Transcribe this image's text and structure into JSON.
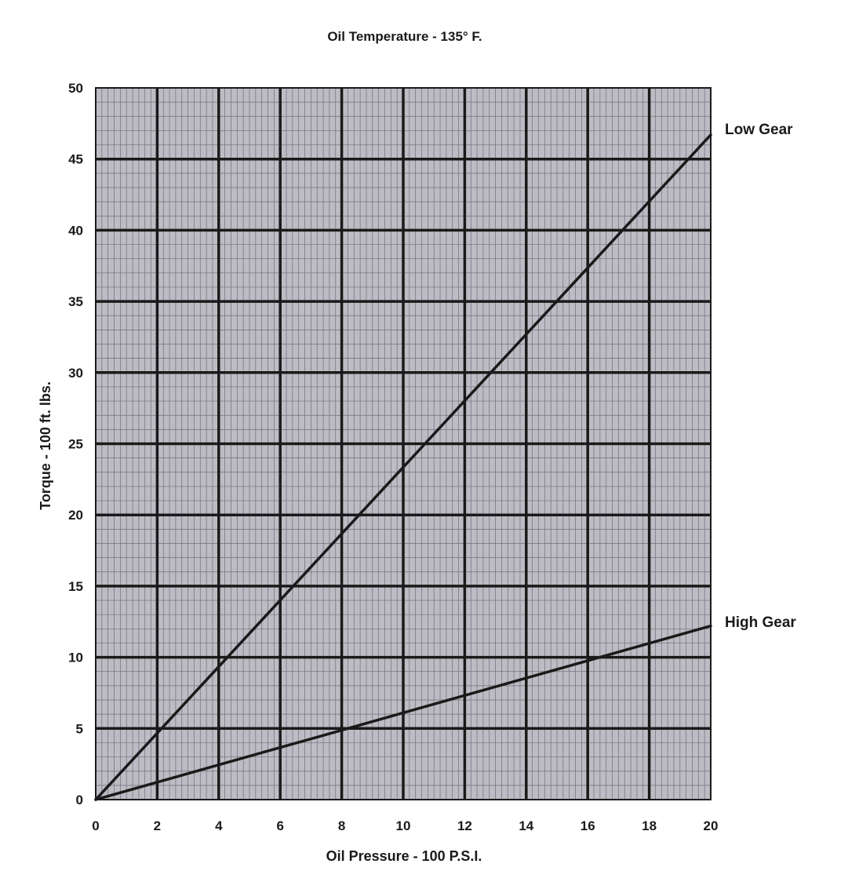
{
  "chart_data": {
    "type": "line",
    "title": "Oil Temperature - 135° F.",
    "xlabel": "Oil Pressure - 100 P.S.I.",
    "ylabel": "Torque - 100 ft. lbs.",
    "xlim": [
      0,
      20
    ],
    "ylim": [
      0,
      50
    ],
    "x_ticks": [
      "0",
      "2",
      "4",
      "6",
      "8",
      "10",
      "12",
      "14",
      "16",
      "18",
      "20"
    ],
    "y_ticks": [
      "0",
      "5",
      "10",
      "15",
      "20",
      "25",
      "30",
      "35",
      "40",
      "45",
      "50"
    ],
    "grid": true,
    "colors": {
      "plot_background": "#bdbcc4",
      "minor_grid": "#6f6f78",
      "major_grid": "#1a1a1a",
      "series_line": "#1a1a1a"
    },
    "series": [
      {
        "name": "Low Gear",
        "x": [
          0,
          20
        ],
        "y": [
          0,
          46.7
        ]
      },
      {
        "name": "High Gear",
        "x": [
          0,
          20
        ],
        "y": [
          0,
          12.2
        ]
      }
    ]
  }
}
